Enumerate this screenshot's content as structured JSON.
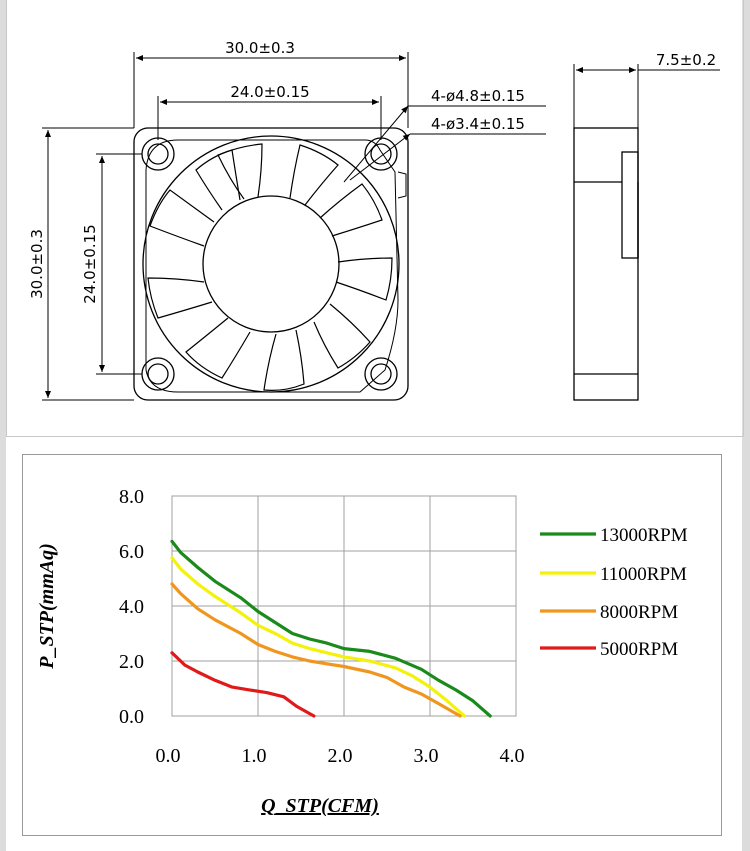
{
  "drawing": {
    "dim_overall_width": "30.0±0.3",
    "dim_hole_spacing_width": "24.0±0.15",
    "dim_overall_height": "30.0±0.3",
    "dim_hole_spacing_height": "24.0±0.15",
    "dim_thickness": "7.5±0.2",
    "callout_outer_holes": "4-ø4.8±0.15",
    "callout_inner_holes": "4-ø3.4±0.15"
  },
  "chart_data": {
    "type": "line",
    "xlabel": "Q_STP(CFM)",
    "ylabel": "P_STP(mmAq)",
    "xlim": [
      0,
      4
    ],
    "ylim": [
      0,
      8
    ],
    "xticks": [
      "0.0",
      "1.0",
      "2.0",
      "3.0",
      "4.0"
    ],
    "yticks": [
      "0.0",
      "2.0",
      "4.0",
      "6.0",
      "8.0"
    ],
    "grid": true,
    "legend": "right",
    "series": [
      {
        "name": "13000RPM",
        "color": "#1a8a1a",
        "points": [
          [
            0.0,
            6.35
          ],
          [
            0.1,
            5.95
          ],
          [
            0.3,
            5.4
          ],
          [
            0.5,
            4.9
          ],
          [
            0.8,
            4.3
          ],
          [
            1.0,
            3.8
          ],
          [
            1.2,
            3.4
          ],
          [
            1.4,
            3.0
          ],
          [
            1.6,
            2.8
          ],
          [
            1.8,
            2.65
          ],
          [
            2.0,
            2.45
          ],
          [
            2.3,
            2.35
          ],
          [
            2.6,
            2.1
          ],
          [
            2.9,
            1.7
          ],
          [
            3.1,
            1.3
          ],
          [
            3.3,
            0.95
          ],
          [
            3.5,
            0.55
          ],
          [
            3.7,
            0.0
          ]
        ]
      },
      {
        "name": "11000RPM",
        "color": "#f2f20a",
        "points": [
          [
            0.0,
            5.75
          ],
          [
            0.1,
            5.35
          ],
          [
            0.3,
            4.8
          ],
          [
            0.5,
            4.35
          ],
          [
            0.8,
            3.75
          ],
          [
            1.0,
            3.3
          ],
          [
            1.2,
            3.0
          ],
          [
            1.4,
            2.65
          ],
          [
            1.6,
            2.45
          ],
          [
            1.8,
            2.3
          ],
          [
            2.0,
            2.15
          ],
          [
            2.3,
            2.0
          ],
          [
            2.6,
            1.75
          ],
          [
            2.8,
            1.45
          ],
          [
            3.0,
            1.05
          ],
          [
            3.2,
            0.55
          ],
          [
            3.4,
            0.0
          ]
        ]
      },
      {
        "name": "8000RPM",
        "color": "#f0961e",
        "points": [
          [
            0.0,
            4.8
          ],
          [
            0.1,
            4.45
          ],
          [
            0.3,
            3.9
          ],
          [
            0.5,
            3.5
          ],
          [
            0.8,
            3.0
          ],
          [
            1.0,
            2.6
          ],
          [
            1.2,
            2.35
          ],
          [
            1.4,
            2.15
          ],
          [
            1.6,
            2.0
          ],
          [
            1.8,
            1.9
          ],
          [
            2.0,
            1.8
          ],
          [
            2.3,
            1.6
          ],
          [
            2.5,
            1.4
          ],
          [
            2.7,
            1.05
          ],
          [
            2.9,
            0.8
          ],
          [
            3.1,
            0.45
          ],
          [
            3.35,
            0.0
          ]
        ]
      },
      {
        "name": "5000RPM",
        "color": "#e01a1a",
        "points": [
          [
            0.0,
            2.3
          ],
          [
            0.15,
            1.85
          ],
          [
            0.3,
            1.6
          ],
          [
            0.5,
            1.3
          ],
          [
            0.7,
            1.05
          ],
          [
            0.9,
            0.95
          ],
          [
            1.1,
            0.85
          ],
          [
            1.3,
            0.7
          ],
          [
            1.45,
            0.35
          ],
          [
            1.65,
            0.0
          ]
        ]
      }
    ]
  }
}
